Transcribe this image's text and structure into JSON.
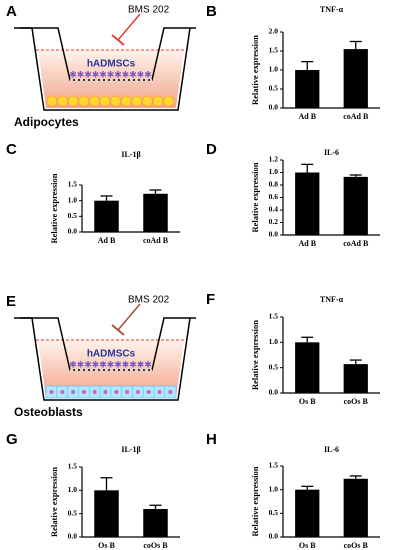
{
  "diagrams": [
    {
      "panel": "A",
      "drug": "BMS 202",
      "cells": "hADMSCs",
      "base": "Adipocytes"
    },
    {
      "panel": "E",
      "drug": "BMS 202",
      "cells": "hADMSCs",
      "base": "Osteoblasts"
    }
  ],
  "chart_data": [
    {
      "type": "bar",
      "panel": "B",
      "title": "TNF-α",
      "ylabel": "Relative expression",
      "categories": [
        "Ad B",
        "coAd B"
      ],
      "values": [
        1.0,
        1.55
      ],
      "errors": [
        0.22,
        0.2
      ],
      "color": "#000000",
      "ylim": [
        0,
        2.0
      ],
      "yticks": [
        {
          "value": 0,
          "label": "0.0"
        },
        {
          "value": 0.5,
          "label": "0.5"
        },
        {
          "value": 1.0,
          "label": "1.0"
        },
        {
          "value": 1.5,
          "label": "1.5"
        },
        {
          "value": 2.0,
          "label": "2.0"
        }
      ]
    },
    {
      "type": "bar",
      "panel": "C",
      "title": "IL-1β",
      "ylabel": "Relative expression",
      "categories": [
        "Ad B",
        "coAd B"
      ],
      "values": [
        1.0,
        1.22
      ],
      "errors": [
        0.15,
        0.12
      ],
      "color": "#000000",
      "ylim": [
        0,
        1.5
      ],
      "yticks": [
        {
          "value": 0,
          "label": "0.0"
        },
        {
          "value": 0.5,
          "label": "0.5"
        },
        {
          "value": 1.0,
          "label": "1.0"
        },
        {
          "value": 1.5,
          "label": "1.5"
        }
      ]
    },
    {
      "type": "bar",
      "panel": "D",
      "title": "IL-6",
      "ylabel": "Relative expression",
      "categories": [
        "Ad B",
        "coAd B"
      ],
      "values": [
        1.0,
        0.93
      ],
      "errors": [
        0.13,
        0.03
      ],
      "color": "#000000",
      "ylim": [
        0,
        1.2
      ],
      "yticks": [
        {
          "value": 0,
          "label": "0.0"
        },
        {
          "value": 0.2,
          "label": "0.2"
        },
        {
          "value": 0.4,
          "label": "0.4"
        },
        {
          "value": 0.6,
          "label": "0.6"
        },
        {
          "value": 0.8,
          "label": "0.8"
        },
        {
          "value": 1.0,
          "label": "1.0"
        },
        {
          "value": 1.2,
          "label": "1.2"
        }
      ]
    },
    {
      "type": "bar",
      "panel": "F",
      "title": "TNF-α",
      "ylabel": "Relative expression",
      "categories": [
        "Os B",
        "coOs B"
      ],
      "values": [
        1.0,
        0.57
      ],
      "errors": [
        0.1,
        0.08
      ],
      "color": "#000000",
      "ylim": [
        0,
        1.5
      ],
      "yticks": [
        {
          "value": 0,
          "label": "0.0"
        },
        {
          "value": 0.5,
          "label": "0.5"
        },
        {
          "value": 1.0,
          "label": "1.0"
        },
        {
          "value": 1.5,
          "label": "1.5"
        }
      ]
    },
    {
      "type": "bar",
      "panel": "G",
      "title": "IL-1β",
      "ylabel": "Relative expression",
      "categories": [
        "Os B",
        "coOs B"
      ],
      "values": [
        1.0,
        0.6
      ],
      "errors": [
        0.27,
        0.08
      ],
      "color": "#000000",
      "ylim": [
        0,
        1.5
      ],
      "yticks": [
        {
          "value": 0,
          "label": "0.0"
        },
        {
          "value": 0.5,
          "label": "0.5"
        },
        {
          "value": 1.0,
          "label": "1.0"
        },
        {
          "value": 1.5,
          "label": "1.5"
        }
      ]
    },
    {
      "type": "bar",
      "panel": "H",
      "title": "IL-6",
      "ylabel": "Relative expression",
      "categories": [
        "Os B",
        "coOs B"
      ],
      "values": [
        1.0,
        1.23
      ],
      "errors": [
        0.07,
        0.06
      ],
      "color": "#000000",
      "ylim": [
        0,
        1.5
      ],
      "yticks": [
        {
          "value": 0,
          "label": "0.0"
        },
        {
          "value": 0.5,
          "label": "0.5"
        },
        {
          "value": 1.0,
          "label": "1.0"
        },
        {
          "value": 1.5,
          "label": "1.5"
        }
      ]
    }
  ]
}
